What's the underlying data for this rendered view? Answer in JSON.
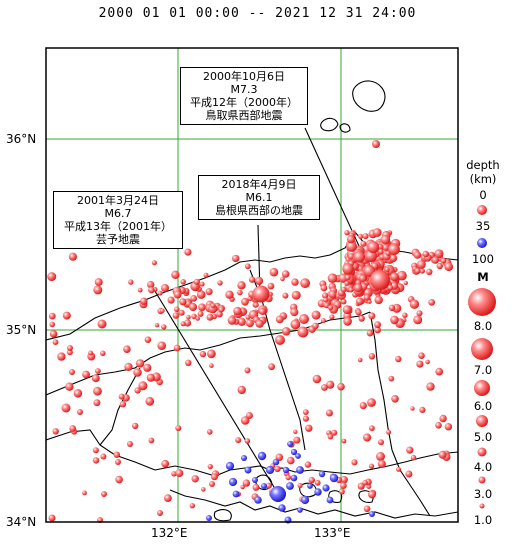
{
  "map": {
    "title": "2000 01 01 00:00 -- 2021 12 31 24:00",
    "lat_labels": [
      "36°N",
      "35°N",
      "34°N"
    ],
    "lon_labels": [
      "132°E",
      "133°E"
    ],
    "grid_color": "#33aa33",
    "quake_color": "#ee2020",
    "deep_color": "#2222ee"
  },
  "annotations": [
    {
      "lines": [
        "2000年10月6日",
        "M7.3",
        "平成12年（2000年）",
        "鳥取県西部地震"
      ]
    },
    {
      "lines": [
        "2018年4月9日",
        "M6.1",
        "島根県西部の地震"
      ]
    },
    {
      "lines": [
        "2001年3月24日",
        "M6.7",
        "平成13年（2001年）",
        "芸予地震"
      ]
    }
  ],
  "legend": {
    "depth_title": "depth",
    "depth_unit": "(km)",
    "depth_values": [
      "0",
      "35",
      "100"
    ],
    "mag_title": "M",
    "mag_values": [
      "8.0",
      "7.0",
      "6.0",
      "5.0",
      "4.0",
      "3.0",
      "1.0"
    ]
  }
}
